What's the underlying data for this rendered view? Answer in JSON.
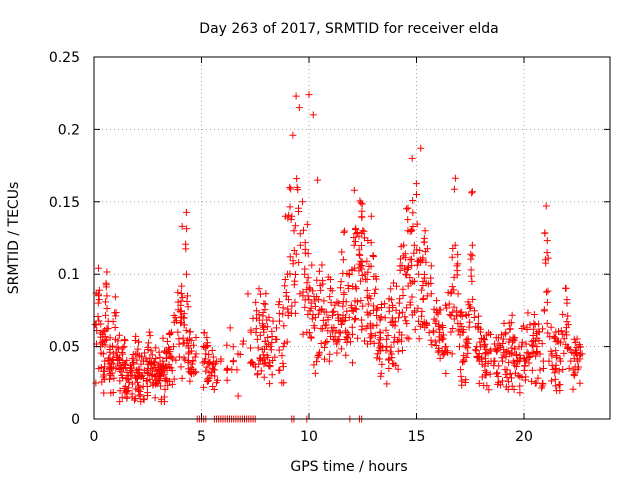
{
  "chart_data": {
    "type": "scatter",
    "title": "Day 263 of 2017, SRMTID for receiver elda",
    "xlabel": "GPS time / hours",
    "ylabel": "SRMTID / TECUs",
    "xlim": [
      0,
      24
    ],
    "ylim": [
      0,
      0.25
    ],
    "x_ticks": [
      0,
      5,
      10,
      15,
      20
    ],
    "x_tick_labels": [
      "0",
      "5",
      "10",
      "15",
      "20"
    ],
    "y_ticks": [
      0,
      0.05,
      0.1,
      0.15,
      0.2,
      0.25
    ],
    "y_tick_labels": [
      "0",
      "0.05",
      "0.1",
      "0.15",
      "0.2",
      "0.25"
    ],
    "grid": true,
    "legend": "none",
    "marker": "+",
    "series": [
      {
        "name": "SRMTID",
        "color": "#ff0000",
        "x": [
          0.1,
          0.3,
          0.5,
          0.7,
          0.9,
          1.1,
          1.3,
          1.5,
          1.7,
          1.9,
          2.1,
          2.3,
          2.5,
          2.7,
          2.9,
          3.1,
          3.3,
          3.5,
          3.7,
          3.9,
          4.05,
          4.2,
          4.4,
          4.6,
          5.2,
          5.5,
          5.9,
          6.2,
          6.7,
          7.3,
          7.6,
          7.9,
          8.2,
          8.5,
          8.8,
          9.0,
          9.2,
          9.3,
          9.45,
          9.6,
          9.8,
          9.95,
          10.1,
          10.3,
          10.5,
          10.8,
          11.1,
          11.4,
          11.7,
          12.0,
          12.2,
          12.4,
          12.6,
          12.8,
          13.0,
          13.3,
          13.6,
          13.9,
          14.2,
          14.5,
          14.7,
          14.9,
          15.1,
          15.3,
          15.5,
          15.8,
          16.2,
          16.6,
          17.0,
          17.4,
          17.8,
          18.2,
          18.6,
          19.0,
          19.4,
          19.8,
          20.2,
          20.6,
          20.9,
          21.3,
          21.7,
          22.1,
          22.5,
          22.7,
          0.2,
          0.6,
          1.0,
          1.4,
          2.0,
          2.6,
          3.2,
          3.8,
          4.1,
          4.3,
          8.9,
          9.1,
          9.25,
          9.4,
          9.55,
          9.7,
          10.0,
          10.2,
          10.4,
          11.0,
          11.6,
          12.1,
          12.5,
          12.9,
          14.6,
          14.8,
          15.0,
          15.2,
          15.4,
          16.8,
          17.6,
          21.0,
          22.0
        ],
        "y": [
          0.065,
          0.05,
          0.04,
          0.035,
          0.045,
          0.038,
          0.03,
          0.028,
          0.035,
          0.03,
          0.032,
          0.028,
          0.035,
          0.03,
          0.033,
          0.03,
          0.035,
          0.045,
          0.05,
          0.06,
          0.07,
          0.065,
          0.045,
          0.04,
          0.045,
          0.035,
          0.04,
          0.035,
          0.045,
          0.06,
          0.055,
          0.06,
          0.05,
          0.055,
          0.05,
          0.1,
          0.14,
          0.13,
          0.16,
          0.12,
          0.1,
          0.085,
          0.08,
          0.07,
          0.075,
          0.065,
          0.06,
          0.055,
          0.07,
          0.075,
          0.09,
          0.105,
          0.1,
          0.085,
          0.075,
          0.06,
          0.055,
          0.065,
          0.08,
          0.1,
          0.11,
          0.12,
          0.1,
          0.095,
          0.085,
          0.06,
          0.055,
          0.06,
          0.05,
          0.055,
          0.05,
          0.045,
          0.04,
          0.04,
          0.045,
          0.04,
          0.045,
          0.05,
          0.04,
          0.045,
          0.04,
          0.035,
          0.04,
          0.045,
          0.08,
          0.085,
          0.055,
          0.05,
          0.045,
          0.042,
          0.04,
          0.07,
          0.133,
          0.1,
          0.14,
          0.16,
          0.196,
          0.223,
          0.215,
          0.15,
          0.224,
          0.21,
          0.165,
          0.09,
          0.11,
          0.12,
          0.13,
          0.14,
          0.13,
          0.18,
          0.155,
          0.187,
          0.13,
          0.12,
          0.12,
          0.11,
          0.08
        ],
        "zero_x": [
          4.8,
          4.9,
          5.0,
          5.1,
          5.2,
          5.6,
          5.7,
          5.8,
          5.9,
          6.0,
          6.1,
          6.2,
          6.3,
          6.4,
          6.5,
          6.6,
          6.7,
          6.8,
          6.9,
          7.0,
          7.1,
          7.2,
          7.3,
          7.4,
          7.5,
          9.2,
          9.3,
          9.9,
          11.9,
          12.35,
          12.45
        ]
      }
    ]
  }
}
